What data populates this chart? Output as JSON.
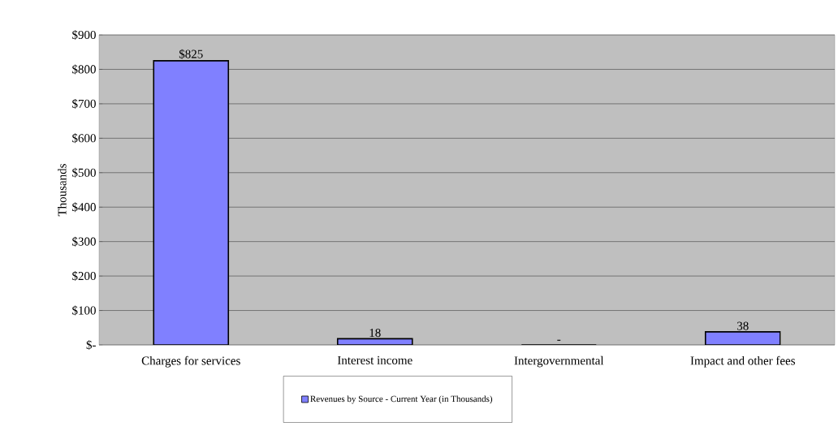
{
  "chart_data": {
    "type": "bar",
    "ylabel": "Thousands",
    "categories": [
      "Charges for services",
      "Interest income",
      "Intergovernmental",
      "Impact and other fees"
    ],
    "series": [
      {
        "name": "Revenues by Source - Current Year (in Thousands)",
        "color": "#8080ff",
        "values": [
          825,
          18,
          0,
          38
        ],
        "value_labels": [
          "$825",
          "18",
          "-",
          "38"
        ]
      }
    ],
    "ylim": [
      0,
      900
    ],
    "yticks": [
      {
        "value": 0,
        "label": "$-"
      },
      {
        "value": 100,
        "label": "$100"
      },
      {
        "value": 200,
        "label": "$200"
      },
      {
        "value": 300,
        "label": "$300"
      },
      {
        "value": 400,
        "label": "$400"
      },
      {
        "value": 500,
        "label": "$500"
      },
      {
        "value": 600,
        "label": "$600"
      },
      {
        "value": 700,
        "label": "$700"
      },
      {
        "value": 800,
        "label": "$800"
      },
      {
        "value": 900,
        "label": "$900"
      }
    ],
    "grid": "y",
    "legend": "bottom"
  }
}
